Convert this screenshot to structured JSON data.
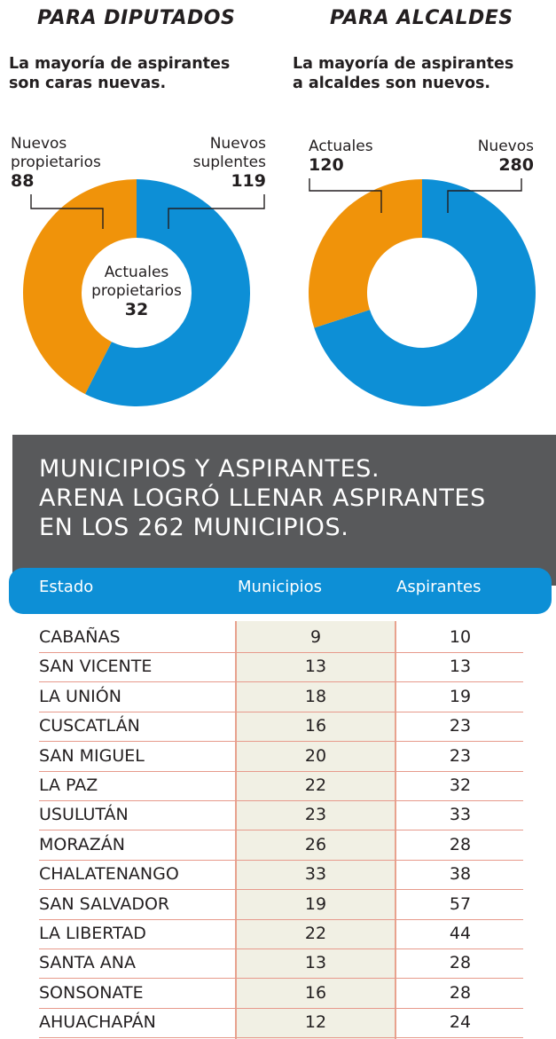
{
  "colors": {
    "blue": "#0d8fd6",
    "orange": "#f0930a",
    "banner": "#58595b",
    "shade": "#f1f0e4"
  },
  "diputados": {
    "title": "PARA DIPUTADOS",
    "subtitle_line1": "La mayoría de aspirantes",
    "subtitle_line2": "son caras nuevas.",
    "left_label_1": "Nuevos",
    "left_label_2": "propietarios",
    "left_value": "88",
    "right_label_1": "Nuevos",
    "right_label_2": "suplentes",
    "right_value": "119",
    "center_label_1": "Actuales",
    "center_label_2": "propietarios",
    "center_value": "32"
  },
  "alcaldes": {
    "title": "PARA ALCALDES",
    "subtitle_line1": "La mayoría de aspirantes",
    "subtitle_line2": "a alcaldes son nuevos.",
    "left_label": "Actuales",
    "left_value": "120",
    "right_label": "Nuevos",
    "right_value": "280"
  },
  "table": {
    "title_line1": "MUNICIPIOS Y ASPIRANTES.",
    "title_line2": "ARENA LOGRÓ LLENAR ASPIRANTES",
    "title_line3": "EN LOS 262 MUNICIPIOS.",
    "headers": {
      "estado": "Estado",
      "municipios": "Municipios",
      "aspirantes": "Aspirantes"
    }
  },
  "chart_data": [
    {
      "type": "pie",
      "title": "PARA DIPUTADOS",
      "slices": [
        {
          "label": "Nuevos suplentes",
          "value": 119,
          "color": "#0d8fd6"
        },
        {
          "label": "Nuevos propietarios",
          "value": 88,
          "color": "#f0930a"
        }
      ],
      "center": {
        "label": "Actuales propietarios",
        "value": 32
      }
    },
    {
      "type": "pie",
      "title": "PARA ALCALDES",
      "slices": [
        {
          "label": "Nuevos",
          "value": 280,
          "color": "#0d8fd6"
        },
        {
          "label": "Actuales",
          "value": 120,
          "color": "#f0930a"
        }
      ]
    },
    {
      "type": "table",
      "title": "MUNICIPIOS Y ASPIRANTES. ARENA LOGRÓ LLENAR ASPIRANTES EN LOS 262 MUNICIPIOS.",
      "columns": [
        "Estado",
        "Municipios",
        "Aspirantes"
      ],
      "rows": [
        [
          "CABAÑAS",
          "9",
          "10"
        ],
        [
          "SAN VICENTE",
          "13",
          "13"
        ],
        [
          "LA UNIÓN",
          "18",
          "19"
        ],
        [
          "CUSCATLÁN",
          "16",
          "23"
        ],
        [
          "SAN MIGUEL",
          "20",
          "23"
        ],
        [
          "LA PAZ",
          "22",
          "32"
        ],
        [
          "USULUTÁN",
          "23",
          "33"
        ],
        [
          "MORAZÁN",
          "26",
          "28"
        ],
        [
          "CHALATENANGO",
          "33",
          "38"
        ],
        [
          "SAN SALVADOR",
          "19",
          "57"
        ],
        [
          "LA LIBERTAD",
          "22",
          "44"
        ],
        [
          "SANTA ANA",
          "13",
          "28"
        ],
        [
          "SONSONATE",
          "16",
          "28"
        ],
        [
          "AHUACHAPÁN",
          "12",
          "24"
        ]
      ]
    }
  ]
}
